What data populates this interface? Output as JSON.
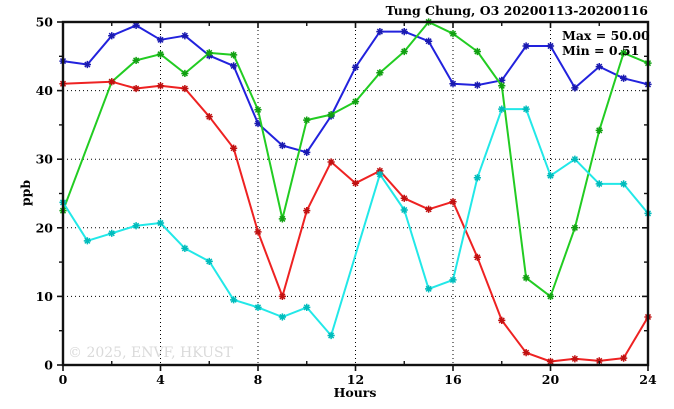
{
  "title": "Tung Chung, O3 20200113-20200116",
  "legend": {
    "max_label": "Max = 50.00",
    "min_label": "Min =  0.51"
  },
  "watermark": "© 2025, ENVF, HKUST",
  "chart_data": {
    "type": "line",
    "title": "Tung Chung, O3 20200113-20200116",
    "xlabel": "Hours",
    "ylabel": "ppb",
    "xlim": [
      0,
      24
    ],
    "ylim": [
      0,
      50
    ],
    "x_major_ticks": [
      0,
      4,
      8,
      12,
      16,
      20,
      24
    ],
    "x_minor_step": 2,
    "y_major_ticks": [
      0,
      10,
      20,
      30,
      40,
      50
    ],
    "y_minor_step": 5,
    "grid": "dotted",
    "grid_color": "#000000",
    "frame_color": "#111111",
    "stats": {
      "max": 50.0,
      "min": 0.51
    },
    "x": [
      0,
      1,
      2,
      3,
      4,
      5,
      6,
      7,
      8,
      9,
      10,
      11,
      12,
      13,
      14,
      15,
      16,
      17,
      18,
      19,
      20,
      21,
      22,
      23,
      24
    ],
    "series": [
      {
        "name": "series-blue",
        "color": "#2222dd",
        "marker_color": "#1a1ab0",
        "values": [
          44.3,
          43.8,
          48.0,
          49.5,
          47.4,
          48.0,
          45.1,
          43.6,
          35.2,
          32.0,
          31.0,
          36.3,
          43.4,
          48.6,
          48.6,
          47.2,
          41.0,
          40.8,
          41.5,
          46.5,
          46.5,
          40.4,
          43.5,
          41.8,
          40.9
        ]
      },
      {
        "name": "series-green",
        "color": "#22cc22",
        "marker_color": "#11a011",
        "values": [
          22.5,
          null,
          41.3,
          44.4,
          45.3,
          42.5,
          45.5,
          45.2,
          37.2,
          21.3,
          35.7,
          36.5,
          38.4,
          42.6,
          45.7,
          50.0,
          48.3,
          45.7,
          40.7,
          12.7,
          10.0,
          20.0,
          34.2,
          45.5,
          44.0
        ]
      },
      {
        "name": "series-red",
        "color": "#ee2222",
        "marker_color": "#c01111",
        "values": [
          41.0,
          null,
          41.3,
          40.3,
          40.7,
          40.3,
          36.2,
          31.6,
          19.4,
          10.0,
          22.5,
          29.6,
          26.5,
          28.3,
          24.3,
          22.7,
          23.8,
          15.7,
          6.5,
          1.8,
          0.51,
          0.9,
          0.6,
          1.0,
          7.0
        ]
      },
      {
        "name": "series-cyan",
        "color": "#22e8e8",
        "marker_color": "#00bcbc",
        "values": [
          23.7,
          18.1,
          19.2,
          20.3,
          20.7,
          17.0,
          15.1,
          9.5,
          8.4,
          7.0,
          8.4,
          4.3,
          null,
          27.8,
          22.6,
          11.1,
          12.4,
          27.3,
          37.3,
          37.3,
          27.6,
          30.0,
          26.4,
          26.4,
          22.1
        ]
      }
    ]
  }
}
